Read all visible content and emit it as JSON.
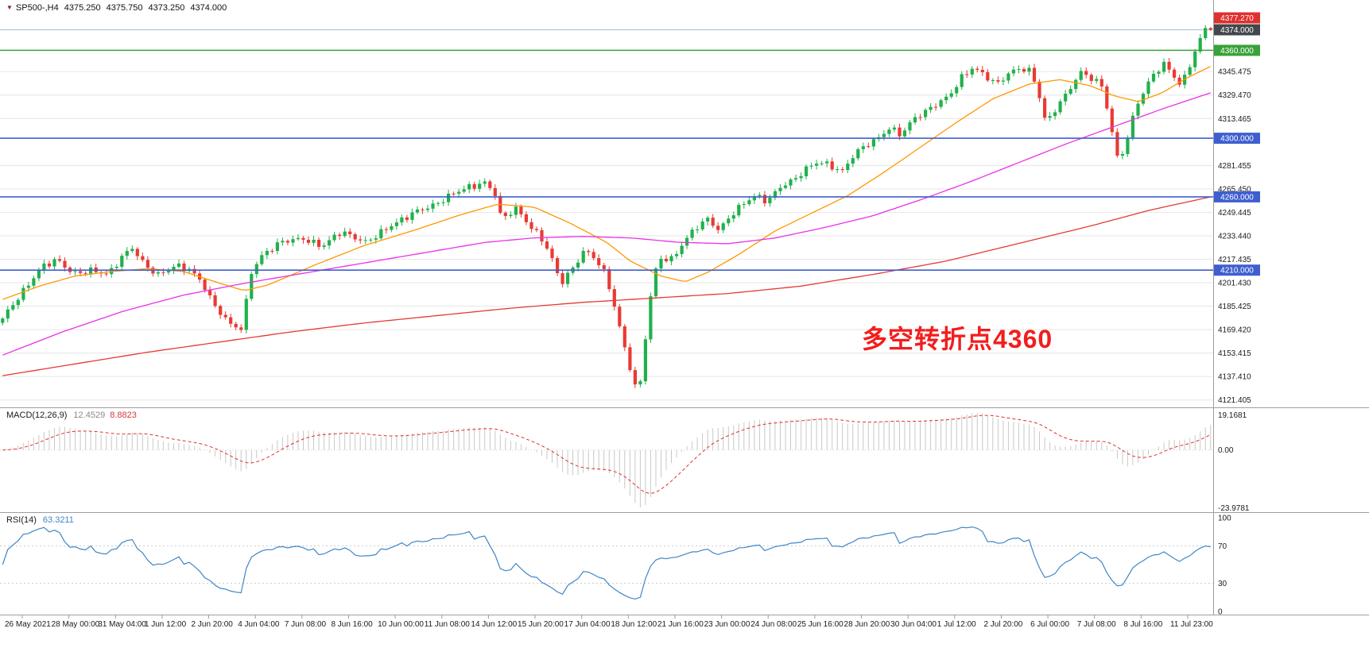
{
  "header": {
    "symbol_period": "SP500-,H4",
    "open": "4375.250",
    "high": "4375.750",
    "low": "4373.250",
    "close": "4374.000"
  },
  "icons": {
    "collapse_arrow": "▼"
  },
  "annotation": {
    "text": "多空转折点4360",
    "color": "#f31d1d"
  },
  "indicators": {
    "macd": {
      "label": "MACD(12,26,9)",
      "main_value": "12.4529",
      "signal_value": "8.8823",
      "axis_labels": {
        "max": "19.1681",
        "zero": "0.00",
        "min": "-23.9781"
      },
      "params": {
        "fast": 12,
        "slow": 26,
        "signal": 9
      },
      "histogram_color": "#c8c8c8",
      "signal_color": "#e03030"
    },
    "rsi": {
      "label": "RSI(14)",
      "value": "63.3211",
      "period": 14,
      "axis_labels": [
        "100",
        "70",
        "30",
        "0"
      ],
      "levels": [
        70,
        30
      ],
      "line_color": "#3e86c6"
    }
  },
  "chart_data": {
    "type": "candlestick",
    "title": "SP500-,H4",
    "symbol": "SP500-",
    "timeframe": "H4",
    "bars": 234,
    "ylim": [
      4118,
      4390
    ],
    "y_axis_labels": [
      {
        "text": "4345.475",
        "price": 4345.475
      },
      {
        "text": "4329.470",
        "price": 4329.47
      },
      {
        "text": "4313.465",
        "price": 4313.465
      },
      {
        "text": "4281.455",
        "price": 4281.455
      },
      {
        "text": "4265.450",
        "price": 4265.45
      },
      {
        "text": "4249.445",
        "price": 4249.445
      },
      {
        "text": "4233.440",
        "price": 4233.44
      },
      {
        "text": "4217.435",
        "price": 4217.435
      },
      {
        "text": "4201.430",
        "price": 4201.43
      },
      {
        "text": "4185.425",
        "price": 4185.425
      },
      {
        "text": "4169.420",
        "price": 4169.42
      },
      {
        "text": "4153.415",
        "price": 4153.415
      },
      {
        "text": "4137.410",
        "price": 4137.41
      },
      {
        "text": "4121.405",
        "price": 4121.405
      }
    ],
    "x_axis_labels": [
      "26 May 2021",
      "28 May 00:00",
      "31 May 04:00",
      "1 Jun 12:00",
      "2 Jun 20:00",
      "4 Jun 04:00",
      "7 Jun 08:00",
      "8 Jun 16:00",
      "10 Jun 00:00",
      "11 Jun 08:00",
      "14 Jun 12:00",
      "15 Jun 20:00",
      "17 Jun 04:00",
      "18 Jun 12:00",
      "21 Jun 16:00",
      "23 Jun 00:00",
      "24 Jun 08:00",
      "25 Jun 16:00",
      "28 Jun 20:00",
      "30 Jun 04:00",
      "1 Jul 12:00",
      "2 Jul 20:00",
      "6 Jul 00:00",
      "7 Jul 08:00",
      "8 Jul 16:00",
      "11 Jul 23:00"
    ],
    "price_path": [
      [
        0.0,
        4176
      ],
      [
        0.008,
        4186
      ],
      [
        0.02,
        4200
      ],
      [
        0.032,
        4212
      ],
      [
        0.045,
        4216
      ],
      [
        0.058,
        4208
      ],
      [
        0.072,
        4211
      ],
      [
        0.088,
        4206
      ],
      [
        0.1,
        4220
      ],
      [
        0.108,
        4226
      ],
      [
        0.118,
        4214
      ],
      [
        0.13,
        4206
      ],
      [
        0.142,
        4212
      ],
      [
        0.155,
        4211
      ],
      [
        0.165,
        4203
      ],
      [
        0.175,
        4186
      ],
      [
        0.188,
        4172
      ],
      [
        0.198,
        4170
      ],
      [
        0.206,
        4210
      ],
      [
        0.215,
        4221
      ],
      [
        0.23,
        4228
      ],
      [
        0.25,
        4232
      ],
      [
        0.265,
        4227
      ],
      [
        0.28,
        4235
      ],
      [
        0.3,
        4230
      ],
      [
        0.315,
        4237
      ],
      [
        0.33,
        4243
      ],
      [
        0.345,
        4252
      ],
      [
        0.36,
        4256
      ],
      [
        0.375,
        4262
      ],
      [
        0.39,
        4268
      ],
      [
        0.4,
        4271
      ],
      [
        0.408,
        4262
      ],
      [
        0.413,
        4244
      ],
      [
        0.425,
        4251
      ],
      [
        0.437,
        4240
      ],
      [
        0.447,
        4232
      ],
      [
        0.456,
        4216
      ],
      [
        0.462,
        4200
      ],
      [
        0.472,
        4210
      ],
      [
        0.482,
        4224
      ],
      [
        0.492,
        4218
      ],
      [
        0.5,
        4206
      ],
      [
        0.508,
        4180
      ],
      [
        0.516,
        4152
      ],
      [
        0.521,
        4138
      ],
      [
        0.525,
        4126
      ],
      [
        0.529,
        4136
      ],
      [
        0.533,
        4172
      ],
      [
        0.539,
        4208
      ],
      [
        0.545,
        4219
      ],
      [
        0.554,
        4217
      ],
      [
        0.564,
        4228
      ],
      [
        0.574,
        4239
      ],
      [
        0.584,
        4246
      ],
      [
        0.593,
        4238
      ],
      [
        0.603,
        4247
      ],
      [
        0.613,
        4254
      ],
      [
        0.623,
        4261
      ],
      [
        0.633,
        4258
      ],
      [
        0.643,
        4267
      ],
      [
        0.656,
        4271
      ],
      [
        0.666,
        4279
      ],
      [
        0.676,
        4285
      ],
      [
        0.686,
        4282
      ],
      [
        0.695,
        4277
      ],
      [
        0.705,
        4288
      ],
      [
        0.715,
        4295
      ],
      [
        0.725,
        4301
      ],
      [
        0.734,
        4308
      ],
      [
        0.744,
        4302
      ],
      [
        0.754,
        4312
      ],
      [
        0.764,
        4318
      ],
      [
        0.774,
        4325
      ],
      [
        0.784,
        4330
      ],
      [
        0.793,
        4340
      ],
      [
        0.803,
        4347
      ],
      [
        0.813,
        4343
      ],
      [
        0.823,
        4338
      ],
      [
        0.833,
        4345
      ],
      [
        0.843,
        4347
      ],
      [
        0.852,
        4344
      ],
      [
        0.859,
        4326
      ],
      [
        0.864,
        4310
      ],
      [
        0.872,
        4322
      ],
      [
        0.882,
        4332
      ],
      [
        0.892,
        4344
      ],
      [
        0.902,
        4340
      ],
      [
        0.91,
        4336
      ],
      [
        0.917,
        4312
      ],
      [
        0.923,
        4286
      ],
      [
        0.93,
        4296
      ],
      [
        0.937,
        4318
      ],
      [
        0.944,
        4330
      ],
      [
        0.954,
        4345
      ],
      [
        0.962,
        4352
      ],
      [
        0.969,
        4344
      ],
      [
        0.976,
        4336
      ],
      [
        0.983,
        4350
      ],
      [
        0.991,
        4366
      ],
      [
        1.0,
        4374
      ]
    ],
    "moving_averages": [
      {
        "name": "ma-fast-orange",
        "color": "#ff9800",
        "anchors": [
          [
            0.0,
            4190
          ],
          [
            0.03,
            4199
          ],
          [
            0.06,
            4206
          ],
          [
            0.09,
            4209
          ],
          [
            0.12,
            4211
          ],
          [
            0.15,
            4209
          ],
          [
            0.18,
            4201
          ],
          [
            0.2,
            4196
          ],
          [
            0.22,
            4200
          ],
          [
            0.26,
            4214
          ],
          [
            0.3,
            4227
          ],
          [
            0.34,
            4237
          ],
          [
            0.38,
            4248
          ],
          [
            0.41,
            4255
          ],
          [
            0.44,
            4253
          ],
          [
            0.47,
            4242
          ],
          [
            0.5,
            4229
          ],
          [
            0.52,
            4216
          ],
          [
            0.545,
            4206
          ],
          [
            0.565,
            4202
          ],
          [
            0.585,
            4209
          ],
          [
            0.61,
            4221
          ],
          [
            0.64,
            4237
          ],
          [
            0.67,
            4249
          ],
          [
            0.7,
            4261
          ],
          [
            0.73,
            4277
          ],
          [
            0.76,
            4294
          ],
          [
            0.79,
            4311
          ],
          [
            0.82,
            4327
          ],
          [
            0.85,
            4337
          ],
          [
            0.875,
            4340
          ],
          [
            0.9,
            4336
          ],
          [
            0.92,
            4329
          ],
          [
            0.94,
            4325
          ],
          [
            0.96,
            4331
          ],
          [
            0.98,
            4341
          ],
          [
            1.0,
            4349
          ]
        ]
      },
      {
        "name": "ma-mid-magenta",
        "color": "#e832e8",
        "anchors": [
          [
            0.0,
            4152
          ],
          [
            0.05,
            4168
          ],
          [
            0.1,
            4182
          ],
          [
            0.15,
            4193
          ],
          [
            0.2,
            4201
          ],
          [
            0.25,
            4208
          ],
          [
            0.3,
            4215
          ],
          [
            0.35,
            4222
          ],
          [
            0.4,
            4229
          ],
          [
            0.44,
            4232
          ],
          [
            0.48,
            4233
          ],
          [
            0.52,
            4232
          ],
          [
            0.56,
            4229
          ],
          [
            0.6,
            4228
          ],
          [
            0.64,
            4232
          ],
          [
            0.68,
            4239
          ],
          [
            0.72,
            4247
          ],
          [
            0.76,
            4258
          ],
          [
            0.8,
            4270
          ],
          [
            0.84,
            4283
          ],
          [
            0.88,
            4296
          ],
          [
            0.92,
            4308
          ],
          [
            0.96,
            4320
          ],
          [
            1.0,
            4331
          ]
        ]
      },
      {
        "name": "ma-slow-red",
        "color": "#e53935",
        "anchors": [
          [
            0.0,
            4138
          ],
          [
            0.06,
            4146
          ],
          [
            0.12,
            4154
          ],
          [
            0.18,
            4161
          ],
          [
            0.24,
            4168
          ],
          [
            0.3,
            4174
          ],
          [
            0.36,
            4179
          ],
          [
            0.42,
            4184
          ],
          [
            0.48,
            4188
          ],
          [
            0.54,
            4191
          ],
          [
            0.6,
            4194
          ],
          [
            0.66,
            4199
          ],
          [
            0.72,
            4207
          ],
          [
            0.78,
            4216
          ],
          [
            0.84,
            4228
          ],
          [
            0.9,
            4240
          ],
          [
            0.95,
            4251
          ],
          [
            1.0,
            4260
          ]
        ]
      }
    ],
    "horizontal_levels": [
      {
        "price": 4360,
        "color": "#3aa23a",
        "tag": "4360.000"
      },
      {
        "price": 4300,
        "color": "#3f5fd0",
        "tag": "4300.000"
      },
      {
        "price": 4260,
        "color": "#3f5fd0",
        "tag": "4260.000"
      },
      {
        "price": 4210,
        "color": "#3f5fd0",
        "tag": "4210.000"
      }
    ],
    "price_tags": [
      {
        "text": "4377.270",
        "price": 4377.27,
        "bg": "#e03030",
        "name": "ask-price-tag",
        "line": false
      },
      {
        "text": "4374.000",
        "price": 4374.0,
        "bg": "#43474c",
        "name": "bid-price-tag",
        "line": true
      }
    ],
    "last_candle": {
      "open": 4375.25,
      "high": 4375.75,
      "low": 4373.25,
      "close": 4374.0
    },
    "colors": {
      "up": "#21b14b",
      "down": "#e93a33",
      "grid": "#e6e6e6",
      "bid_line": "#a8bed8",
      "axis_text": "#1a1a1a",
      "panel_border": "#9e9e9e"
    }
  }
}
